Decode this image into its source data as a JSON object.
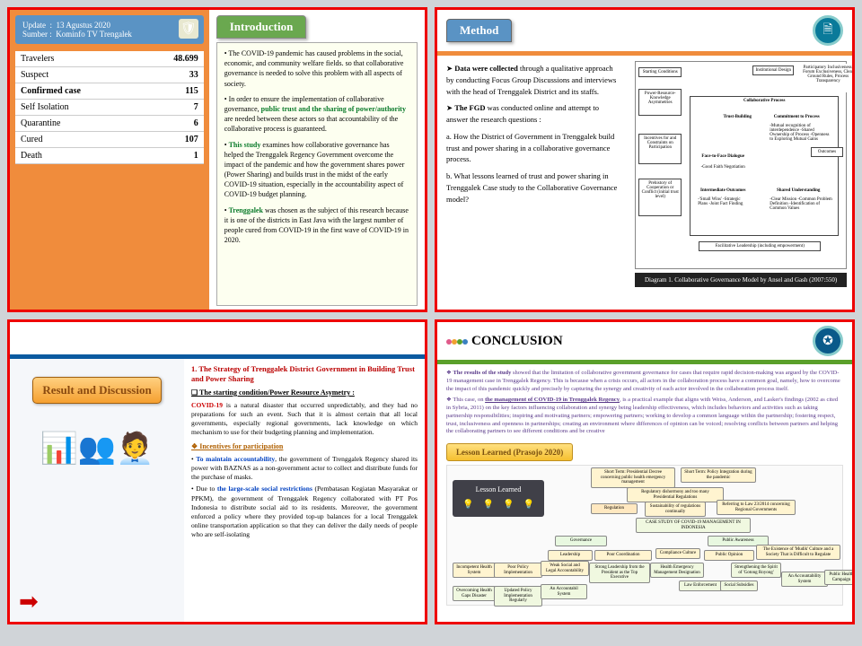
{
  "s1": {
    "update_label": "Update",
    "update_val": "13 Agustus 2020",
    "sumber_label": "Sumber",
    "sumber_val": "Kominfo TV Trengalek",
    "rows": [
      {
        "k": "Travelers",
        "v": "48.699"
      },
      {
        "k": "Suspect",
        "v": "33"
      },
      {
        "k": "Confirmed case",
        "v": "115"
      },
      {
        "k": "Self Isolation",
        "v": "7"
      },
      {
        "k": "Quarantine",
        "v": "6"
      },
      {
        "k": "Cured",
        "v": "107"
      },
      {
        "k": "Death",
        "v": "1"
      }
    ],
    "tab": "Introduction",
    "p1a": "The COVID-19 pandemic has caused problems in the social, economic, and community welfare fields. so that collaborative governance is needed to solve this problem with all aspects of society.",
    "p2a": "In order to ensure the implementation of collaborative governance, ",
    "p2b": "public trust and the sharing of power/authority",
    "p2c": " are needed between these actors so that accountability of the collaborative process is guaranteed.",
    "p3a": "This study",
    "p3b": " examines how collaborative governance has helped the Trenggalek Regency Government overcome the impact of the pandemic and how the government shares power (Power Sharing) and builds trust in the midst of the early COVID-19 situation, especially in the accountability aspect of COVID-19 budget planning.",
    "p4a": "Trenggalek",
    "p4b": " was chosen as the subject of this research because it is one of the districts in East Java with the largest number of people cured from COVID-19 in the first wave of COVID-19 in 2020."
  },
  "s2": {
    "tab": "Method",
    "p1a": "Data were collected",
    "p1b": " through a qualitative approach by conducting Focus Group Discussions and interviews with the head of Trenggalek District and its staffs.",
    "p2a": "The FGD",
    "p2b": " was conducted online and attempt to answer the research questions :",
    "qa": "a. How the District of Government in Trenggalek build trust and power sharing in a collaborative governance process.",
    "qb": "b. What lessons learned of trust and power sharing in Trenggalek Case study to the Collaborative Governance model?",
    "caption": "Diagram 1. Collaborative Governance Model by Ansel and Gash (2007:550)",
    "d": {
      "start": "Starting Conditions",
      "start_items": "Power-Resource-Knowledge Asymmetries",
      "inc": "Incentives for and Constraints on Participation",
      "preh": "Prehistory of Cooperation or Conflict (initial trust level)",
      "inst": "Institutional Design",
      "inst2": "Participatory Inclusiveness, Forum Exclusiveness, Clear Ground Rules, Process Transparency",
      "proc": "Collaborative Process",
      "trust": "Trust-Building",
      "commit": "Commitment to Process",
      "commit2": "-Mutual recognition of interdependence -Shared Ownership of Process -Openness to Exploring Mutual Gains",
      "f2f": "Face-to-Face Dialogue",
      "f2f2": "-Good Faith Negotiation",
      "inter": "Intermediate Outcomes",
      "inter2": "-'Small Wins' -Strategic Plans -Joint Fact Finding",
      "shared": "Shared Understanding",
      "shared2": "-Clear Mission -Common Problem Definition -Identification of Common Values",
      "fac": "Facilitative Leadership (including empowerment)",
      "out": "Outcomes"
    }
  },
  "s3": {
    "title": "Result and Discussion",
    "h1": "1. The Strategy of Trenggalek District Government in Building Trust and Power Sharing",
    "sub": "❑ The starting condition/Power Resource Asymetry :",
    "p1a": "COVID-19",
    "p1b": " is a natural disaster that occurred unpredictably, and they had no preparations for such an event. Such that it is almost certain that all local governments, especially regional governments, lack knowledge on which mechanism to use for their budgeting planning and implementation.",
    "inc": "❖ Incentives for participation",
    "p2a": "To maintain accountability",
    "p2b": ", the government of Trenggalek Regency shared its power  with BAZNAS as a non-government actor to collect and distribute funds for the purchase of masks.",
    "p3a": "Due to ",
    "p3b": "the large-scale social restrictions",
    "p3c": " (Pembatasan Kegiatan Masyarakat or PPKM), the government of Trenggalek Regency collaborated with PT Pos Indonesia to distribute social aid to its residents. Moreover, the government enforced a policy where they provided top-up balances for a local Trenggalek online transportation application so that they can deliver the daily needs of people who are self-isolating"
  },
  "s4": {
    "title": "CONCLUSION",
    "p1a": "The results of the study",
    "p1b": " showed that the limitation of collaborative government governance for cases that require rapid decision-making was argued by the COVID-19 management case in Trenggalek Regency. This is because when a crisis occurs, all actors in the collaboration process have a common goal, namely, how to overcome the impact of this pandemic quickly and precisely by capturing the synergy and creativity of each actor involved in the collaboration process itself.",
    "p2a": "This case, on ",
    "p2b": "the management of COVID-19 in Trenggalek Regency",
    "p2c": ", is a practical example that aligns with Weiss, Anderson, and Lasker's findings (2002 as cited in Sybria, 2011) on the key factors influencing collaboration and synergy being leadership effectiveness, which includes behaviors and activities such as taking partnership responsibilities; inspiring and motivating partners; empowering partners; working to develop a common language within the partnership; fostering respect, trust, inclusiveness and openness in partnerships; creating an environment where differences of opinion can be voiced; resolving conflicts between partners and helping the collaborating partners to see different conditions and be creative",
    "lesson": "Lesson Learned (Prasojo 2020)",
    "lbox": "Lesson Learned",
    "nodes": {
      "n1": "Short Term: Presidential Decree concerning public health emergency management",
      "n2": "Short Term: Policy Integration during the pandemic",
      "n3": "Regulatory dishormony and too many Presidential Regulations",
      "n4": "Regulation",
      "n5": "Sustainability of regulations continually",
      "n6": "Referring to Law 23/2014 concerning Regional Governments",
      "n7": "CASE STUDY OF COVID-19 MANAGEMENT IN INDONESIA",
      "n8": "Governance",
      "n9": "Public Awareness",
      "n10": "Leadership",
      "n11": "Poor Coordination",
      "n12": "Compliance Culture",
      "n13": "Public Opinion",
      "n14": "The Existence of 'Mudik' Culture and a Society That is Difficult to Regulate",
      "n15": "Incompetent Health System",
      "n16": "Poor Policy Implementation",
      "n17": "Weak Social and Legal Accountability",
      "n18": "Strong Leadership from the President as the Top Executive",
      "n19": "Health Emergency Management Designation",
      "n20": "Law Enforcement",
      "n21": "Social Subsidies",
      "n22": "Strengthening the Spirit of 'Gotong Royong'",
      "n23": "An Accountability System",
      "n24": "Public Health Campaign",
      "n25": "Overcoming Health Gaps Disaster",
      "n26": "Updated Policy Implementation Regularly",
      "n27": "An Accountabil System"
    }
  }
}
